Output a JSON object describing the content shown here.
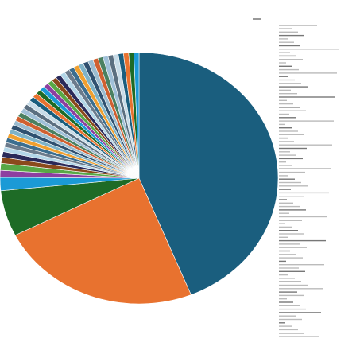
{
  "chart_data": {
    "type": "pie",
    "values": [
      43.9,
      23.6,
      5.9,
      1.7,
      0.9,
      0.9,
      0.8,
      0.7,
      0.6,
      0.6,
      0.6,
      0.6,
      0.6,
      0.6,
      0.6,
      0.6,
      0.6,
      0.6,
      0.6,
      0.6,
      0.6,
      0.6,
      0.6,
      0.6,
      0.6,
      0.6,
      0.6,
      0.6,
      0.6,
      0.6,
      0.6,
      0.6,
      0.6,
      0.6,
      0.6,
      0.6,
      0.6,
      0.6,
      0.6,
      0.6,
      0.6,
      0.6,
      0.6,
      0.6
    ],
    "colors": [
      "#1a5e7e",
      "#e8722f",
      "#1e6b26",
      "#1b9ad6",
      "#8d3fa0",
      "#58a846",
      "#8b4a1c",
      "#2a2a5a",
      "#b3d6e8",
      "#6b7b8c",
      "#3c6e8f",
      "#f0a030",
      "#7fb3c8",
      "#2f5070",
      "#9bbcd0",
      "#d06030",
      "#4a8060",
      "#a0c0d8",
      "#5b6f80",
      "#c8dce8"
    ]
  }
}
